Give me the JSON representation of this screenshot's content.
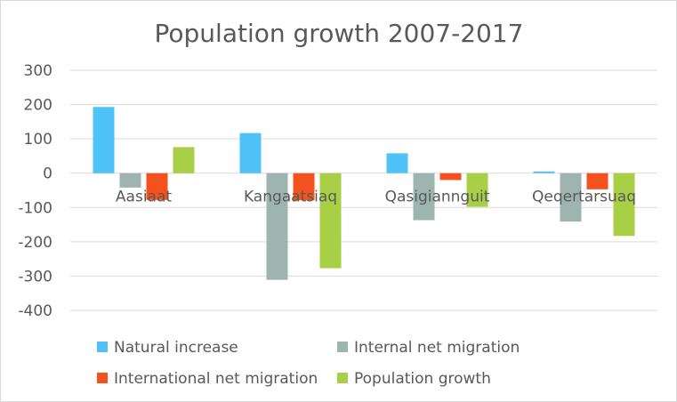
{
  "chart_data": {
    "type": "bar",
    "title": "Population growth 2007-2017",
    "xlabel": "",
    "ylabel": "",
    "categories": [
      "Aasiaat",
      "Kangaatsiaq",
      "Qasigiannguit",
      "Qeqertarsuaq"
    ],
    "series": [
      {
        "name": "Natural increase",
        "color": "#4fc3f7",
        "values": [
          193,
          117,
          58,
          5
        ]
      },
      {
        "name": "Internal net migration",
        "color": "#9db5ae",
        "values": [
          -42,
          -311,
          -137,
          -141
        ]
      },
      {
        "name": "International net migration",
        "color": "#f4511e",
        "values": [
          -78,
          -79,
          -20,
          -47
        ]
      },
      {
        "name": "Population growth",
        "color": "#a8cf45",
        "values": [
          76,
          -277,
          -98,
          -183
        ]
      }
    ],
    "ylim": [
      -400,
      300
    ],
    "yticks": [
      -400,
      -300,
      -200,
      -100,
      0,
      100,
      200,
      300
    ],
    "grid": true,
    "legend_position": "bottom"
  }
}
